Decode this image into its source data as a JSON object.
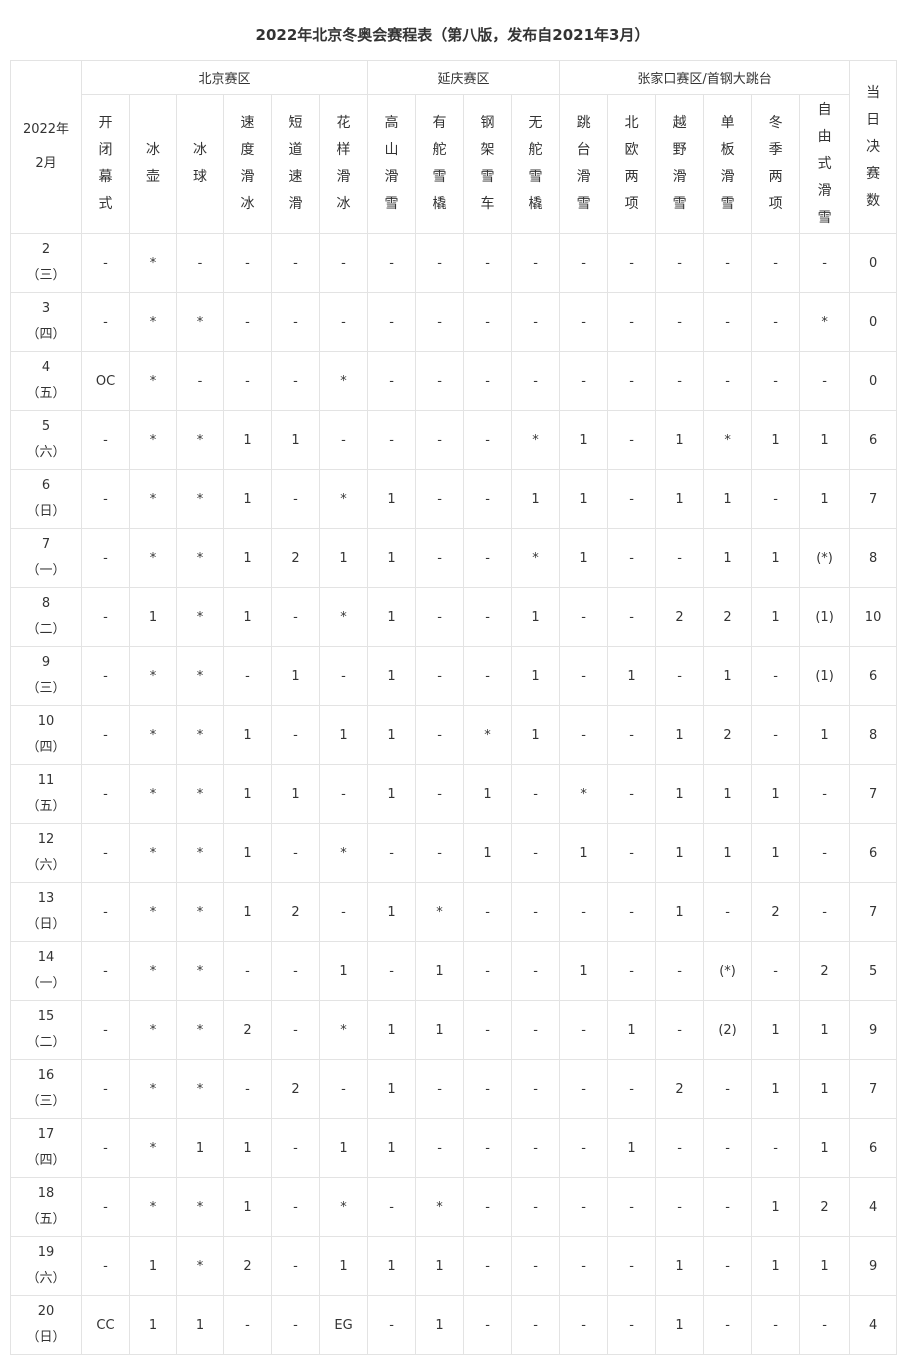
{
  "title": "2022年北京冬奥会赛程表（第八版，发布自2021年3月）",
  "month_header": [
    "2022年",
    "2月"
  ],
  "zones": [
    "北京赛区",
    "延庆赛区",
    "张家口赛区/首钢大跳台"
  ],
  "sports": [
    "开闭幕式",
    "冰壶",
    "冰球",
    "速度滑冰",
    "短道速滑",
    "花样滑冰",
    "高山滑雪",
    "有舵雪橇",
    "钢架雪车",
    "无舵雪橇",
    "跳台滑雪",
    "北欧两项",
    "越野滑雪",
    "单板滑雪",
    "冬季两项",
    "自由式滑雪"
  ],
  "finals_header": "当日决赛数",
  "rows": [
    {
      "day": "2",
      "weekday": "（三）",
      "cells": [
        "-",
        "*",
        "-",
        "-",
        "-",
        "-",
        "-",
        "-",
        "-",
        "-",
        "-",
        "-",
        "-",
        "-",
        "-",
        "-"
      ],
      "finals": "0"
    },
    {
      "day": "3",
      "weekday": "（四）",
      "cells": [
        "-",
        "*",
        "*",
        "-",
        "-",
        "-",
        "-",
        "-",
        "-",
        "-",
        "-",
        "-",
        "-",
        "-",
        "-",
        "*"
      ],
      "finals": "0"
    },
    {
      "day": "4",
      "weekday": "（五）",
      "cells": [
        "OC",
        "*",
        "-",
        "-",
        "-",
        "*",
        "-",
        "-",
        "-",
        "-",
        "-",
        "-",
        "-",
        "-",
        "-",
        "-"
      ],
      "finals": "0"
    },
    {
      "day": "5",
      "weekday": "（六）",
      "cells": [
        "-",
        "*",
        "*",
        "1",
        "1",
        "-",
        "-",
        "-",
        "-",
        "*",
        "1",
        "-",
        "1",
        "*",
        "1",
        "1"
      ],
      "finals": "6"
    },
    {
      "day": "6",
      "weekday": "（日）",
      "cells": [
        "-",
        "*",
        "*",
        "1",
        "-",
        "*",
        "1",
        "-",
        "-",
        "1",
        "1",
        "-",
        "1",
        "1",
        "-",
        "1"
      ],
      "finals": "7"
    },
    {
      "day": "7",
      "weekday": "（一）",
      "cells": [
        "-",
        "*",
        "*",
        "1",
        "2",
        "1",
        "1",
        "-",
        "-",
        "*",
        "1",
        "-",
        "-",
        "1",
        "1",
        "(*)"
      ],
      "finals": "8"
    },
    {
      "day": "8",
      "weekday": "（二）",
      "cells": [
        "-",
        "1",
        "*",
        "1",
        "-",
        "*",
        "1",
        "-",
        "-",
        "1",
        "-",
        "-",
        "2",
        "2",
        "1",
        "(1)"
      ],
      "finals": "10"
    },
    {
      "day": "9",
      "weekday": "（三）",
      "cells": [
        "-",
        "*",
        "*",
        "-",
        "1",
        "-",
        "1",
        "-",
        "-",
        "1",
        "-",
        "1",
        "-",
        "1",
        "-",
        "(1)"
      ],
      "finals": "6"
    },
    {
      "day": "10",
      "weekday": "（四）",
      "cells": [
        "-",
        "*",
        "*",
        "1",
        "-",
        "1",
        "1",
        "-",
        "*",
        "1",
        "-",
        "-",
        "1",
        "2",
        "-",
        "1"
      ],
      "finals": "8"
    },
    {
      "day": "11",
      "weekday": "（五）",
      "cells": [
        "-",
        "*",
        "*",
        "1",
        "1",
        "-",
        "1",
        "-",
        "1",
        "-",
        "*",
        "-",
        "1",
        "1",
        "1",
        "-"
      ],
      "finals": "7"
    },
    {
      "day": "12",
      "weekday": "（六）",
      "cells": [
        "-",
        "*",
        "*",
        "1",
        "-",
        "*",
        "-",
        "-",
        "1",
        "-",
        "1",
        "-",
        "1",
        "1",
        "1",
        "-"
      ],
      "finals": "6"
    },
    {
      "day": "13",
      "weekday": "（日）",
      "cells": [
        "-",
        "*",
        "*",
        "1",
        "2",
        "-",
        "1",
        "*",
        "-",
        "-",
        "-",
        "-",
        "1",
        "-",
        "2",
        "-"
      ],
      "finals": "7"
    },
    {
      "day": "14",
      "weekday": "（一）",
      "cells": [
        "-",
        "*",
        "*",
        "-",
        "-",
        "1",
        "-",
        "1",
        "-",
        "-",
        "1",
        "-",
        "-",
        "(*)",
        "-",
        "2"
      ],
      "finals": "5"
    },
    {
      "day": "15",
      "weekday": "（二）",
      "cells": [
        "-",
        "*",
        "*",
        "2",
        "-",
        "*",
        "1",
        "1",
        "-",
        "-",
        "-",
        "1",
        "-",
        "(2)",
        "1",
        "1"
      ],
      "finals": "9"
    },
    {
      "day": "16",
      "weekday": "（三）",
      "cells": [
        "-",
        "*",
        "*",
        "-",
        "2",
        "-",
        "1",
        "-",
        "-",
        "-",
        "-",
        "-",
        "2",
        "-",
        "1",
        "1"
      ],
      "finals": "7"
    },
    {
      "day": "17",
      "weekday": "（四）",
      "cells": [
        "-",
        "*",
        "1",
        "1",
        "-",
        "1",
        "1",
        "-",
        "-",
        "-",
        "-",
        "1",
        "-",
        "-",
        "-",
        "1"
      ],
      "finals": "6"
    },
    {
      "day": "18",
      "weekday": "（五）",
      "cells": [
        "-",
        "*",
        "*",
        "1",
        "-",
        "*",
        "-",
        "*",
        "-",
        "-",
        "-",
        "-",
        "-",
        "-",
        "1",
        "2"
      ],
      "finals": "4"
    },
    {
      "day": "19",
      "weekday": "（六）",
      "cells": [
        "-",
        "1",
        "*",
        "2",
        "-",
        "1",
        "1",
        "1",
        "-",
        "-",
        "-",
        "-",
        "1",
        "-",
        "1",
        "1"
      ],
      "finals": "9"
    },
    {
      "day": "20",
      "weekday": "（日）",
      "cells": [
        "CC",
        "1",
        "1",
        "-",
        "-",
        "EG",
        "-",
        "1",
        "-",
        "-",
        "-",
        "-",
        "1",
        "-",
        "-",
        "-"
      ],
      "finals": "4"
    }
  ]
}
